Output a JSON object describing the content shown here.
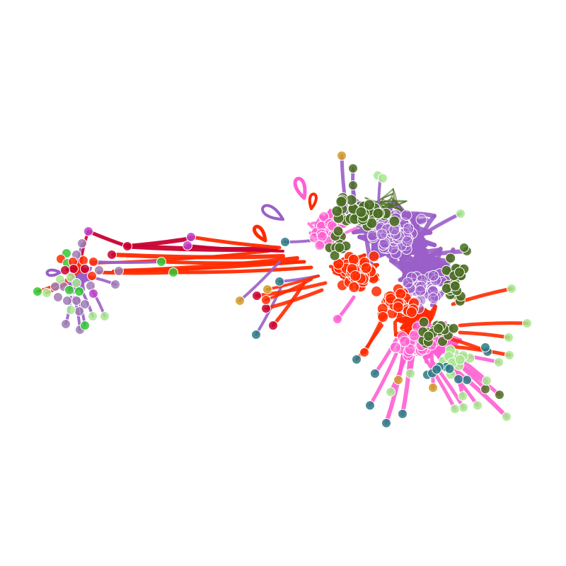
{
  "figure": {
    "kind": "network-graph",
    "background": "#ffffff",
    "groups": {
      "purple": "#9a5fc8",
      "red": "#ff2a00",
      "pink": "#ff5fd2",
      "crimson": "#c80032",
      "olive": "#4b6e23",
      "light_green": "#a8e890",
      "teal": "#2a7a84",
      "gold": "#d29b28",
      "magenta": "#c040c8",
      "green": "#32c832",
      "mauve": "#a07cb4"
    }
  }
}
